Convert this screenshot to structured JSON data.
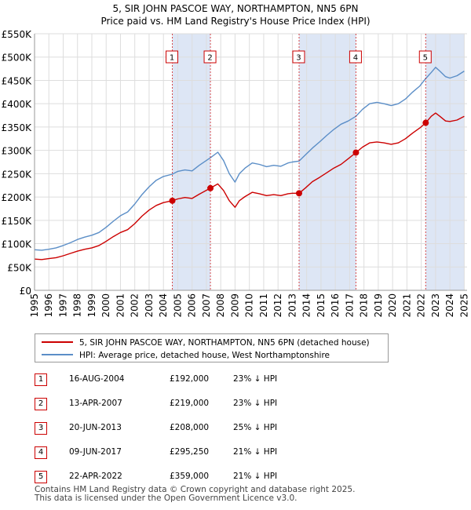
{
  "title": {
    "line1": "5, SIR JOHN PASCOE WAY, NORTHAMPTON, NN5 6PN",
    "line2": "Price paid vs. HM Land Registry's House Price Index (HPI)"
  },
  "colors": {
    "property": "#cc0000",
    "hpi": "#5b8ec7",
    "band": "#dde6f5",
    "grid": "#dddddd",
    "marker_border": "#cc0000"
  },
  "legend": {
    "property_label": "5, SIR JOHN PASCOE WAY, NORTHAMPTON, NN5 6PN (detached house)",
    "hpi_label": "HPI: Average price, detached house, West Northamptonshire"
  },
  "transactions": [
    {
      "num": "1",
      "date": "16-AUG-2004",
      "price": "£192,000",
      "hpi": "23% ↓ HPI"
    },
    {
      "num": "2",
      "date": "13-APR-2007",
      "price": "£219,000",
      "hpi": "23% ↓ HPI"
    },
    {
      "num": "3",
      "date": "20-JUN-2013",
      "price": "£208,000",
      "hpi": "25% ↓ HPI"
    },
    {
      "num": "4",
      "date": "09-JUN-2017",
      "price": "£295,250",
      "hpi": "21% ↓ HPI"
    },
    {
      "num": "5",
      "date": "22-APR-2022",
      "price": "£359,000",
      "hpi": "21% ↓ HPI"
    }
  ],
  "footer": {
    "line1": "Contains HM Land Registry data © Crown copyright and database right 2025.",
    "line2": "This data is licensed under the Open Government Licence v3.0."
  },
  "chart_data": {
    "type": "line",
    "title": "5, SIR JOHN PASCOE WAY, NORTHAMPTON, NN5 6PN",
    "subtitle": "Price paid vs. HM Land Registry's House Price Index (HPI)",
    "xlabel": "",
    "ylabel": "",
    "xlim": [
      1995,
      2025.2
    ],
    "ylim": [
      0,
      550000
    ],
    "y_ticks": [
      0,
      50000,
      100000,
      150000,
      200000,
      250000,
      300000,
      350000,
      400000,
      450000,
      500000,
      550000
    ],
    "y_tick_labels": [
      "£0",
      "£50K",
      "£100K",
      "£150K",
      "£200K",
      "£250K",
      "£300K",
      "£350K",
      "£400K",
      "£450K",
      "£500K",
      "£550K"
    ],
    "x_ticks": [
      1995,
      1996,
      1997,
      1998,
      1999,
      2000,
      2001,
      2002,
      2003,
      2004,
      2005,
      2006,
      2007,
      2008,
      2009,
      2010,
      2011,
      2012,
      2013,
      2014,
      2015,
      2016,
      2017,
      2018,
      2019,
      2020,
      2021,
      2022,
      2023,
      2024,
      2025
    ],
    "x_tick_labels": [
      "1995",
      "1996",
      "1997",
      "1998",
      "1999",
      "2000",
      "2001",
      "2002",
      "2003",
      "2004",
      "2005",
      "2006",
      "2007",
      "2008",
      "2009",
      "2010",
      "2011",
      "2012",
      "2013",
      "2014",
      "2015",
      "2016",
      "2017",
      "2018",
      "2019",
      "2020",
      "2021",
      "2022",
      "2023",
      "2024",
      "2025"
    ],
    "grid": true,
    "legend_position": "bottom",
    "shaded_periods": [
      [
        2004.62,
        2007.28
      ],
      [
        2013.47,
        2017.44
      ],
      [
        2022.31,
        2025.0
      ]
    ],
    "sale_markers": [
      {
        "label": "1",
        "x": 2004.62,
        "y": 192000
      },
      {
        "label": "2",
        "x": 2007.28,
        "y": 219000
      },
      {
        "label": "3",
        "x": 2013.47,
        "y": 208000
      },
      {
        "label": "4",
        "x": 2017.44,
        "y": 295250
      },
      {
        "label": "5",
        "x": 2022.31,
        "y": 359000
      }
    ],
    "series": [
      {
        "name": "5, SIR JOHN PASCOE WAY, NORTHAMPTON, NN5 6PN (detached house)",
        "color": "#cc0000",
        "x": [
          1995.0,
          1995.5,
          1996.0,
          1996.5,
          1997.0,
          1997.5,
          1998.0,
          1998.5,
          1999.0,
          1999.5,
          2000.0,
          2000.5,
          2001.0,
          2001.5,
          2002.0,
          2002.5,
          2003.0,
          2003.5,
          2004.0,
          2004.62,
          2005.0,
          2005.5,
          2006.0,
          2006.5,
          2007.28,
          2007.8,
          2008.2,
          2008.6,
          2009.0,
          2009.3,
          2009.7,
          2010.2,
          2010.7,
          2011.2,
          2011.7,
          2012.2,
          2012.7,
          2013.0,
          2013.47,
          2013.9,
          2014.4,
          2014.9,
          2015.4,
          2015.9,
          2016.4,
          2016.9,
          2017.44,
          2017.9,
          2018.4,
          2018.9,
          2019.4,
          2019.9,
          2020.4,
          2020.9,
          2021.4,
          2021.9,
          2022.31,
          2022.7,
          2023.0,
          2023.3,
          2023.7,
          2024.0,
          2024.5,
          2025.0
        ],
        "values": [
          67000,
          66000,
          68000,
          70000,
          74000,
          79000,
          84000,
          88000,
          91000,
          96000,
          105000,
          115000,
          124000,
          130000,
          143000,
          159000,
          172000,
          182000,
          188000,
          192000,
          196000,
          199000,
          197000,
          206000,
          219000,
          228000,
          214000,
          192000,
          178000,
          192000,
          201000,
          210000,
          207000,
          203000,
          205000,
          203000,
          207000,
          208000,
          208000,
          219000,
          233000,
          242000,
          252000,
          262000,
          270000,
          282000,
          295250,
          307000,
          316000,
          318000,
          316000,
          313000,
          316000,
          325000,
          337000,
          348000,
          359000,
          373000,
          380000,
          373000,
          363000,
          362000,
          365000,
          373000
        ]
      },
      {
        "name": "HPI: Average price, detached house, West Northamptonshire",
        "color": "#5b8ec7",
        "x": [
          1995.0,
          1995.5,
          1996.0,
          1996.5,
          1997.0,
          1997.5,
          1998.0,
          1998.5,
          1999.0,
          1999.5,
          2000.0,
          2000.5,
          2001.0,
          2001.5,
          2002.0,
          2002.5,
          2003.0,
          2003.5,
          2004.0,
          2004.62,
          2005.0,
          2005.5,
          2006.0,
          2006.5,
          2007.28,
          2007.8,
          2008.2,
          2008.6,
          2009.0,
          2009.3,
          2009.7,
          2010.2,
          2010.7,
          2011.2,
          2011.7,
          2012.2,
          2012.7,
          2013.0,
          2013.47,
          2013.9,
          2014.4,
          2014.9,
          2015.4,
          2015.9,
          2016.4,
          2016.9,
          2017.44,
          2017.9,
          2018.4,
          2018.9,
          2019.4,
          2019.9,
          2020.4,
          2020.9,
          2021.4,
          2021.9,
          2022.31,
          2022.7,
          2023.0,
          2023.3,
          2023.7,
          2024.0,
          2024.5,
          2025.0
        ],
        "values": [
          87000,
          86000,
          88000,
          91000,
          96000,
          102000,
          109000,
          114000,
          118000,
          124000,
          135000,
          148000,
          160000,
          168000,
          185000,
          205000,
          222000,
          236000,
          244000,
          249000,
          255000,
          258000,
          256000,
          268000,
          284000,
          296000,
          278000,
          250000,
          232000,
          250000,
          262000,
          273000,
          270000,
          265000,
          268000,
          266000,
          273000,
          275000,
          277000,
          290000,
          305000,
          318000,
          332000,
          345000,
          356000,
          363000,
          373000,
          388000,
          400000,
          403000,
          400000,
          396000,
          400000,
          410000,
          425000,
          438000,
          454000,
          467000,
          478000,
          470000,
          458000,
          455000,
          460000,
          470000
        ]
      }
    ]
  }
}
